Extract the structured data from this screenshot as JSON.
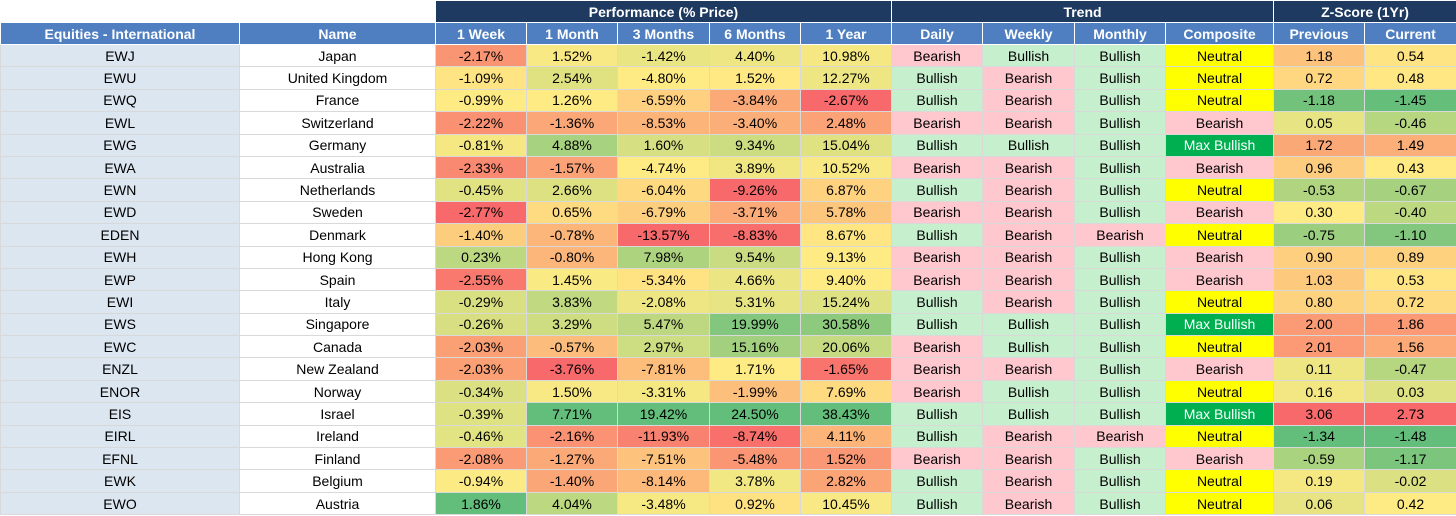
{
  "header": {
    "groups": {
      "performance": "Performance (% Price)",
      "trend": "Trend",
      "zscore": "Z-Score (1Yr)"
    },
    "columns": [
      "Equities - International",
      "Name",
      "1 Week",
      "1 Month",
      "3 Months",
      "6 Months",
      "1 Year",
      "Daily",
      "Weekly",
      "Monthly",
      "Composite",
      "Previous",
      "Current"
    ]
  },
  "colors": {
    "header_dark": "#1f3a60",
    "header_blue": "#4f7fc0",
    "ticker_bg": "#dce6f1",
    "bullish": "#c6efce",
    "bearish": "#ffc7ce",
    "neutral": "#ffff00",
    "max_bullish": "#00b050",
    "heat_red": "#f8696b",
    "heat_yellow": "#ffeb84",
    "heat_green": "#63be7b"
  },
  "rows": [
    {
      "ticker": "EWJ",
      "name": "Japan",
      "w1": "-2.17%",
      "m1": "1.52%",
      "m3": "-1.42%",
      "m6": "4.40%",
      "y1": "10.98%",
      "daily": "Bearish",
      "weekly": "Bullish",
      "monthly": "Bullish",
      "composite": "Neutral",
      "prev": "1.18",
      "curr": "0.54"
    },
    {
      "ticker": "EWU",
      "name": "United Kingdom",
      "w1": "-1.09%",
      "m1": "2.54%",
      "m3": "-4.80%",
      "m6": "1.52%",
      "y1": "12.27%",
      "daily": "Bullish",
      "weekly": "Bearish",
      "monthly": "Bullish",
      "composite": "Neutral",
      "prev": "0.72",
      "curr": "0.48"
    },
    {
      "ticker": "EWQ",
      "name": "France",
      "w1": "-0.99%",
      "m1": "1.26%",
      "m3": "-6.59%",
      "m6": "-3.84%",
      "y1": "-2.67%",
      "daily": "Bullish",
      "weekly": "Bearish",
      "monthly": "Bullish",
      "composite": "Neutral",
      "prev": "-1.18",
      "curr": "-1.45"
    },
    {
      "ticker": "EWL",
      "name": "Switzerland",
      "w1": "-2.22%",
      "m1": "-1.36%",
      "m3": "-8.53%",
      "m6": "-3.40%",
      "y1": "2.48%",
      "daily": "Bearish",
      "weekly": "Bearish",
      "monthly": "Bullish",
      "composite": "Bearish",
      "prev": "0.05",
      "curr": "-0.46"
    },
    {
      "ticker": "EWG",
      "name": "Germany",
      "w1": "-0.81%",
      "m1": "4.88%",
      "m3": "1.60%",
      "m6": "9.34%",
      "y1": "15.04%",
      "daily": "Bullish",
      "weekly": "Bullish",
      "monthly": "Bullish",
      "composite": "Max Bullish",
      "prev": "1.72",
      "curr": "1.49"
    },
    {
      "ticker": "EWA",
      "name": "Australia",
      "w1": "-2.33%",
      "m1": "-1.57%",
      "m3": "-4.74%",
      "m6": "3.89%",
      "y1": "10.52%",
      "daily": "Bearish",
      "weekly": "Bearish",
      "monthly": "Bullish",
      "composite": "Bearish",
      "prev": "0.96",
      "curr": "0.43"
    },
    {
      "ticker": "EWN",
      "name": "Netherlands",
      "w1": "-0.45%",
      "m1": "2.66%",
      "m3": "-6.04%",
      "m6": "-9.26%",
      "y1": "6.87%",
      "daily": "Bullish",
      "weekly": "Bearish",
      "monthly": "Bullish",
      "composite": "Neutral",
      "prev": "-0.53",
      "curr": "-0.67"
    },
    {
      "ticker": "EWD",
      "name": "Sweden",
      "w1": "-2.77%",
      "m1": "0.65%",
      "m3": "-6.79%",
      "m6": "-3.71%",
      "y1": "5.78%",
      "daily": "Bearish",
      "weekly": "Bearish",
      "monthly": "Bullish",
      "composite": "Bearish",
      "prev": "0.30",
      "curr": "-0.40"
    },
    {
      "ticker": "EDEN",
      "name": "Denmark",
      "w1": "-1.40%",
      "m1": "-0.78%",
      "m3": "-13.57%",
      "m6": "-8.83%",
      "y1": "8.67%",
      "daily": "Bullish",
      "weekly": "Bearish",
      "monthly": "Bearish",
      "composite": "Neutral",
      "prev": "-0.75",
      "curr": "-1.10"
    },
    {
      "ticker": "EWH",
      "name": "Hong Kong",
      "w1": "0.23%",
      "m1": "-0.80%",
      "m3": "7.98%",
      "m6": "9.54%",
      "y1": "9.13%",
      "daily": "Bearish",
      "weekly": "Bearish",
      "monthly": "Bullish",
      "composite": "Bearish",
      "prev": "0.90",
      "curr": "0.89"
    },
    {
      "ticker": "EWP",
      "name": "Spain",
      "w1": "-2.55%",
      "m1": "1.45%",
      "m3": "-5.34%",
      "m6": "4.66%",
      "y1": "9.40%",
      "daily": "Bearish",
      "weekly": "Bearish",
      "monthly": "Bullish",
      "composite": "Bearish",
      "prev": "1.03",
      "curr": "0.53"
    },
    {
      "ticker": "EWI",
      "name": "Italy",
      "w1": "-0.29%",
      "m1": "3.83%",
      "m3": "-2.08%",
      "m6": "5.31%",
      "y1": "15.24%",
      "daily": "Bullish",
      "weekly": "Bearish",
      "monthly": "Bullish",
      "composite": "Neutral",
      "prev": "0.80",
      "curr": "0.72"
    },
    {
      "ticker": "EWS",
      "name": "Singapore",
      "w1": "-0.26%",
      "m1": "3.29%",
      "m3": "5.47%",
      "m6": "19.99%",
      "y1": "30.58%",
      "daily": "Bullish",
      "weekly": "Bullish",
      "monthly": "Bullish",
      "composite": "Max Bullish",
      "prev": "2.00",
      "curr": "1.86"
    },
    {
      "ticker": "EWC",
      "name": "Canada",
      "w1": "-2.03%",
      "m1": "-0.57%",
      "m3": "2.97%",
      "m6": "15.16%",
      "y1": "20.06%",
      "daily": "Bearish",
      "weekly": "Bullish",
      "monthly": "Bullish",
      "composite": "Neutral",
      "prev": "2.01",
      "curr": "1.56"
    },
    {
      "ticker": "ENZL",
      "name": "New Zealand",
      "w1": "-2.03%",
      "m1": "-3.76%",
      "m3": "-7.81%",
      "m6": "1.71%",
      "y1": "-1.65%",
      "daily": "Bearish",
      "weekly": "Bearish",
      "monthly": "Bullish",
      "composite": "Bearish",
      "prev": "0.11",
      "curr": "-0.47"
    },
    {
      "ticker": "ENOR",
      "name": "Norway",
      "w1": "-0.34%",
      "m1": "1.50%",
      "m3": "-3.31%",
      "m6": "-1.99%",
      "y1": "7.69%",
      "daily": "Bearish",
      "weekly": "Bullish",
      "monthly": "Bullish",
      "composite": "Neutral",
      "prev": "0.16",
      "curr": "0.03"
    },
    {
      "ticker": "EIS",
      "name": "Israel",
      "w1": "-0.39%",
      "m1": "7.71%",
      "m3": "19.42%",
      "m6": "24.50%",
      "y1": "38.43%",
      "daily": "Bullish",
      "weekly": "Bullish",
      "monthly": "Bullish",
      "composite": "Max Bullish",
      "prev": "3.06",
      "curr": "2.73"
    },
    {
      "ticker": "EIRL",
      "name": "Ireland",
      "w1": "-0.46%",
      "m1": "-2.16%",
      "m3": "-11.93%",
      "m6": "-8.74%",
      "y1": "4.11%",
      "daily": "Bullish",
      "weekly": "Bearish",
      "monthly": "Bearish",
      "composite": "Neutral",
      "prev": "-1.34",
      "curr": "-1.48"
    },
    {
      "ticker": "EFNL",
      "name": "Finland",
      "w1": "-2.08%",
      "m1": "-1.27%",
      "m3": "-7.51%",
      "m6": "-5.48%",
      "y1": "1.52%",
      "daily": "Bearish",
      "weekly": "Bearish",
      "monthly": "Bullish",
      "composite": "Bearish",
      "prev": "-0.59",
      "curr": "-1.17"
    },
    {
      "ticker": "EWK",
      "name": "Belgium",
      "w1": "-0.94%",
      "m1": "-1.40%",
      "m3": "-8.14%",
      "m6": "3.78%",
      "y1": "2.82%",
      "daily": "Bullish",
      "weekly": "Bearish",
      "monthly": "Bullish",
      "composite": "Neutral",
      "prev": "0.19",
      "curr": "-0.02"
    },
    {
      "ticker": "EWO",
      "name": "Austria",
      "w1": "1.86%",
      "m1": "4.04%",
      "m3": "-3.48%",
      "m6": "0.92%",
      "y1": "10.45%",
      "daily": "Bullish",
      "weekly": "Bearish",
      "monthly": "Bullish",
      "composite": "Neutral",
      "prev": "0.06",
      "curr": "0.42"
    }
  ]
}
